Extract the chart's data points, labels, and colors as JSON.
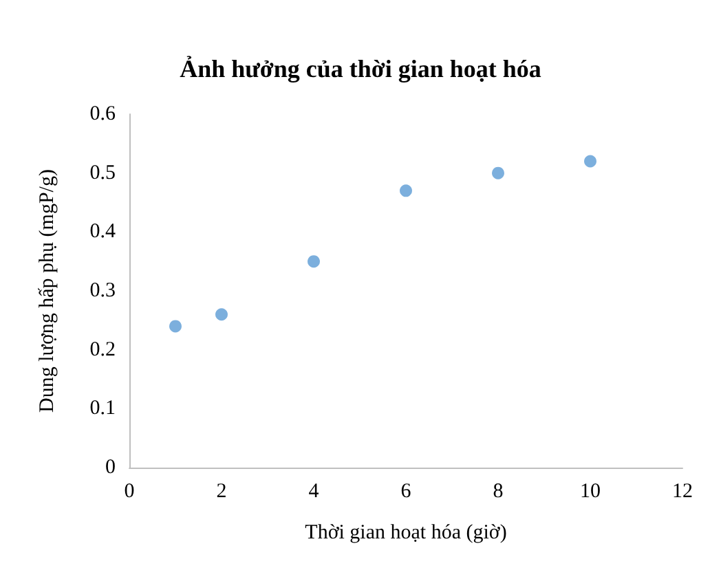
{
  "chart_data": {
    "type": "scatter",
    "title": "Ảnh hưởng của thời gian hoạt hóa",
    "xlabel": "Thời gian hoạt hóa (giờ)",
    "ylabel": "Dung lượng hấp phụ (mgP/g)",
    "x": [
      1,
      2,
      4,
      6,
      8,
      10
    ],
    "series": [
      {
        "color": "#5b9bd5",
        "values": [
          0.24,
          0.26,
          0.35,
          0.47,
          0.5,
          0.52
        ]
      }
    ],
    "xlim": [
      0,
      12
    ],
    "xticks": [
      0,
      2,
      4,
      6,
      8,
      10,
      12
    ],
    "ylim": [
      0,
      0.6
    ],
    "yticks": [
      0,
      0.1,
      0.2,
      0.3,
      0.4,
      0.5,
      0.6
    ],
    "grid": false,
    "marker": "circle"
  }
}
